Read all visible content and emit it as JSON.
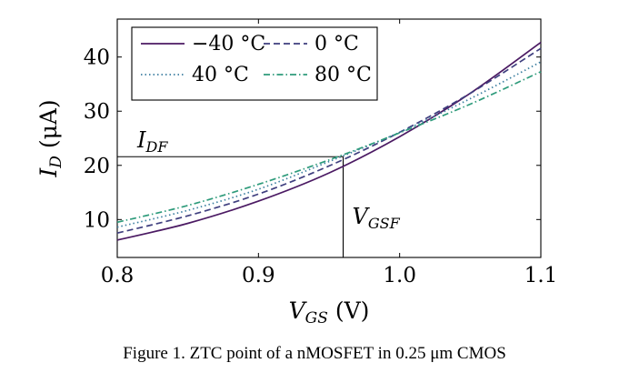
{
  "caption": "Figure 1.  ZTC point of a nMOSFET in 0.25 μm CMOS",
  "chart_data": {
    "type": "line",
    "xlabel_main": "V",
    "xlabel_sub": "GS",
    "xlabel_unit": "(V)",
    "ylabel_main": "I",
    "ylabel_sub": "D",
    "ylabel_unit": "(μA)",
    "xlim": [
      0.8,
      1.1
    ],
    "ylim": [
      3,
      47
    ],
    "xticks": [
      0.8,
      0.9,
      1.0,
      1.1
    ],
    "xtick_labels": [
      "0.8",
      "0.9",
      "1.0",
      "1.1"
    ],
    "yticks": [
      10,
      20,
      30,
      40
    ],
    "ytick_labels": [
      "10",
      "20",
      "30",
      "40"
    ],
    "grid": false,
    "legend_position": "top-left",
    "series": [
      {
        "name": "−40 °C",
        "color": "#4b1a63",
        "dash": "solid",
        "x": [
          0.8,
          0.85,
          0.9,
          0.95,
          1.0,
          1.05,
          1.1
        ],
        "y": [
          6.2,
          9.3,
          13.4,
          18.6,
          25.3,
          33.3,
          42.7
        ]
      },
      {
        "name": "0 °C",
        "color": "#3f3f7f",
        "dash": "dashed",
        "x": [
          0.8,
          0.85,
          0.9,
          0.95,
          1.0,
          1.05,
          1.1
        ],
        "y": [
          7.5,
          10.7,
          14.7,
          19.9,
          26.1,
          33.3,
          41.6
        ]
      },
      {
        "name": "40 °C",
        "color": "#3c7fa0",
        "dash": "dotted",
        "x": [
          0.8,
          0.85,
          0.9,
          0.95,
          1.0,
          1.05,
          1.1
        ],
        "y": [
          8.6,
          11.7,
          15.6,
          20.7,
          26.1,
          32.3,
          39.1
        ]
      },
      {
        "name": "80 °C",
        "color": "#2e9b7b",
        "dash": "dashdot",
        "x": [
          0.8,
          0.85,
          0.9,
          0.95,
          1.0,
          1.05,
          1.1
        ],
        "y": [
          9.5,
          12.6,
          16.5,
          21.0,
          26.0,
          31.3,
          37.3
        ]
      }
    ],
    "annotations": {
      "idf_main": "I",
      "idf_sub": "DF",
      "idf_value": 21.6,
      "vgsf_main": "V",
      "vgsf_sub": "GSF",
      "vgsf_value": 0.96
    }
  }
}
